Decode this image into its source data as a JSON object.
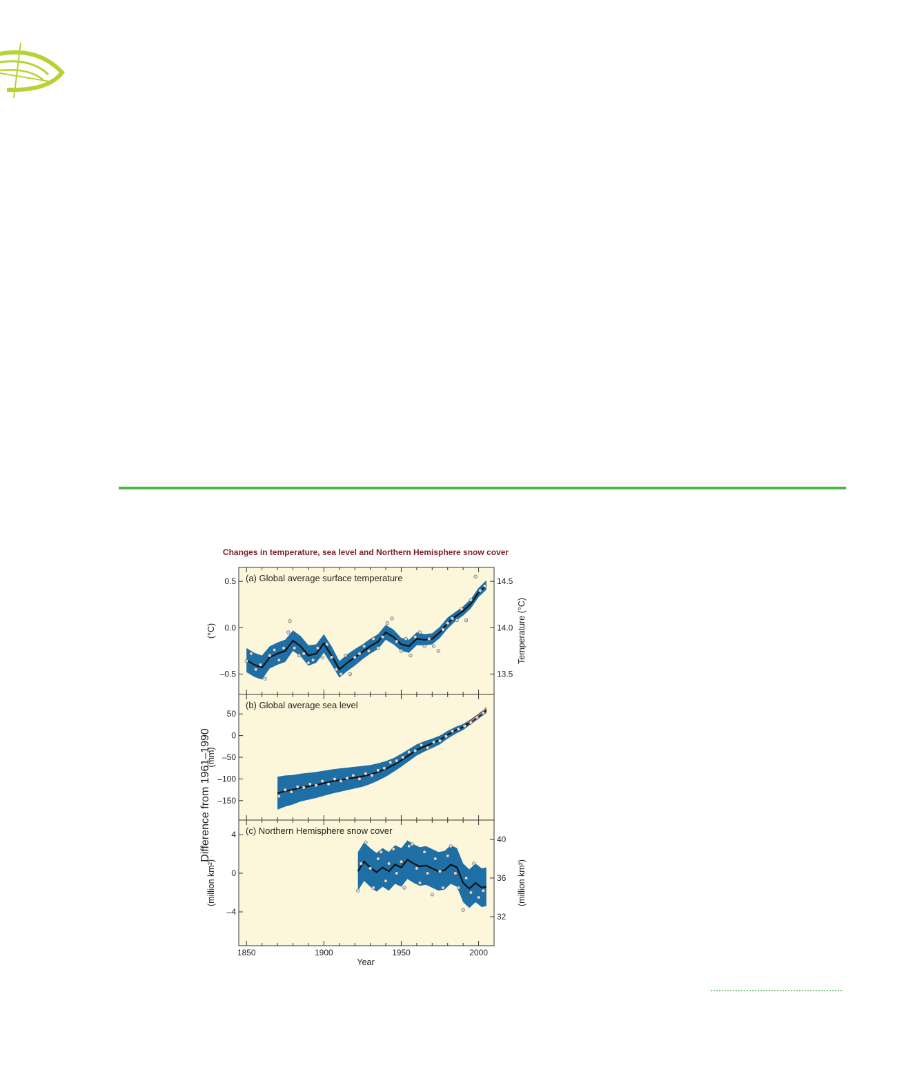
{
  "logo_icon": "compass-swoosh-icon",
  "colors": {
    "rule": "#4cb648",
    "band": "#1d6fa6",
    "panel_bg": "#fcf7da",
    "title": "#7a1f2a",
    "obs_line": "#111111",
    "satellite": "#e8703a"
  },
  "chart_data": {
    "type": "line",
    "title": "Changes in temperature, sea level and Northern Hemisphere snow cover",
    "shared_ylabel": "Difference from 1961–1990",
    "xlabel": "Year",
    "xlim": [
      1845,
      2010
    ],
    "xticks": [
      "1850",
      "1900",
      "1950",
      "2000"
    ],
    "panels": [
      {
        "id": "a",
        "label": "(a) Global average surface temperature",
        "ylabel": "(°C)",
        "ylim": [
          -0.72,
          0.65
        ],
        "yticks": [
          "0.5",
          "0.0",
          "–0.5"
        ],
        "ytick_values": [
          0.5,
          0.0,
          -0.5
        ],
        "right_ylabel": "Temperature (°C)",
        "right_yticks": [
          "14.5",
          "14.0",
          "13.5"
        ],
        "right_ytick_values": [
          0.5,
          0.0,
          -0.5
        ],
        "smooth": {
          "x": [
            1850,
            1855,
            1860,
            1865,
            1870,
            1875,
            1880,
            1885,
            1890,
            1895,
            1900,
            1905,
            1910,
            1915,
            1920,
            1925,
            1930,
            1935,
            1940,
            1945,
            1950,
            1955,
            1960,
            1965,
            1970,
            1975,
            1980,
            1985,
            1990,
            1995,
            2000,
            2005
          ],
          "y": [
            -0.35,
            -0.4,
            -0.43,
            -0.32,
            -0.28,
            -0.25,
            -0.14,
            -0.2,
            -0.3,
            -0.28,
            -0.17,
            -0.3,
            -0.45,
            -0.38,
            -0.32,
            -0.26,
            -0.2,
            -0.15,
            -0.05,
            -0.1,
            -0.18,
            -0.2,
            -0.12,
            -0.13,
            -0.12,
            -0.05,
            0.05,
            0.12,
            0.18,
            0.26,
            0.38,
            0.46
          ]
        },
        "uncertainty": [
          0.13,
          0.13,
          0.13,
          0.12,
          0.12,
          0.12,
          0.11,
          0.11,
          0.11,
          0.1,
          0.1,
          0.1,
          0.09,
          0.09,
          0.09,
          0.08,
          0.08,
          0.08,
          0.08,
          0.08,
          0.07,
          0.07,
          0.07,
          0.06,
          0.06,
          0.06,
          0.06,
          0.05,
          0.05,
          0.05,
          0.05,
          0.05
        ],
        "annual": {
          "x": [
            1850,
            1853,
            1856,
            1859,
            1862,
            1865,
            1868,
            1871,
            1874,
            1877,
            1878,
            1881,
            1884,
            1887,
            1890,
            1893,
            1896,
            1899,
            1902,
            1905,
            1908,
            1911,
            1914,
            1917,
            1920,
            1923,
            1926,
            1929,
            1932,
            1935,
            1938,
            1941,
            1944,
            1947,
            1950,
            1953,
            1956,
            1959,
            1962,
            1965,
            1968,
            1971,
            1974,
            1977,
            1980,
            1983,
            1986,
            1989,
            1992,
            1995,
            1998,
            2001,
            2004
          ],
          "y": [
            -0.36,
            -0.28,
            -0.45,
            -0.4,
            -0.55,
            -0.3,
            -0.24,
            -0.35,
            -0.22,
            -0.05,
            0.07,
            -0.22,
            -0.3,
            -0.28,
            -0.38,
            -0.35,
            -0.22,
            -0.32,
            -0.18,
            -0.32,
            -0.45,
            -0.5,
            -0.3,
            -0.5,
            -0.32,
            -0.28,
            -0.2,
            -0.25,
            -0.12,
            -0.22,
            -0.1,
            0.05,
            0.1,
            -0.15,
            -0.25,
            -0.12,
            -0.3,
            -0.1,
            -0.05,
            -0.2,
            -0.12,
            -0.2,
            -0.25,
            -0.02,
            0.05,
            0.1,
            0.08,
            0.2,
            0.08,
            0.3,
            0.55,
            0.4,
            0.45
          ]
        }
      },
      {
        "id": "b",
        "label": "(b) Global average sea level",
        "ylabel": "(mm)",
        "ylim": [
          -195,
          95
        ],
        "yticks": [
          "50",
          "0",
          "–50",
          "–100",
          "–150"
        ],
        "ytick_values": [
          50,
          0,
          -50,
          -100,
          -150
        ],
        "smooth": {
          "x": [
            1870,
            1875,
            1880,
            1885,
            1890,
            1895,
            1900,
            1905,
            1910,
            1915,
            1920,
            1925,
            1930,
            1935,
            1940,
            1945,
            1950,
            1955,
            1960,
            1965,
            1970,
            1975,
            1980,
            1985,
            1990,
            1995,
            2000,
            2005
          ],
          "y": [
            -133,
            -128,
            -125,
            -120,
            -117,
            -114,
            -110,
            -106,
            -103,
            -100,
            -97,
            -94,
            -90,
            -84,
            -77,
            -68,
            -57,
            -45,
            -33,
            -25,
            -18,
            -10,
            2,
            12,
            20,
            32,
            45,
            58
          ]
        },
        "uncertainty": [
          38,
          36,
          34,
          32,
          31,
          30,
          29,
          28,
          27,
          26,
          25,
          24,
          22,
          20,
          18,
          16,
          15,
          14,
          13,
          12,
          11,
          10,
          9,
          8,
          7,
          6,
          6,
          6
        ],
        "satellite": {
          "x": [
            1993,
            1996,
            1999,
            2002,
            2005
          ],
          "y": [
            30,
            36,
            45,
            52,
            65
          ]
        },
        "annual": {
          "x": [
            1871,
            1875,
            1879,
            1883,
            1887,
            1891,
            1895,
            1899,
            1903,
            1907,
            1911,
            1915,
            1919,
            1923,
            1927,
            1931,
            1935,
            1939,
            1943,
            1947,
            1951,
            1955,
            1959,
            1963,
            1967,
            1971,
            1975,
            1979,
            1983,
            1987,
            1991,
            1995,
            1999,
            2003
          ],
          "y": [
            -140,
            -125,
            -130,
            -118,
            -120,
            -112,
            -115,
            -105,
            -112,
            -100,
            -105,
            -98,
            -92,
            -100,
            -88,
            -92,
            -80,
            -75,
            -62,
            -58,
            -50,
            -38,
            -35,
            -22,
            -28,
            -15,
            -12,
            -2,
            10,
            15,
            22,
            30,
            42,
            52
          ]
        }
      },
      {
        "id": "c",
        "label": "(c) Northern Hemisphere snow cover",
        "ylabel": "(million km²)",
        "ylim": [
          -7.5,
          5.5
        ],
        "yticks": [
          "4",
          "0",
          "–4"
        ],
        "ytick_values": [
          4,
          0,
          -4
        ],
        "right_ylabel": "(million km²)",
        "right_yticks": [
          "40",
          "36",
          "32"
        ],
        "right_ytick_values": [
          3.5,
          -0.5,
          -4.5
        ],
        "smooth": {
          "x": [
            1922,
            1926,
            1930,
            1934,
            1938,
            1942,
            1946,
            1950,
            1954,
            1958,
            1962,
            1966,
            1970,
            1974,
            1978,
            1982,
            1986,
            1990,
            1994,
            1998,
            2002,
            2005
          ],
          "y": [
            0.2,
            1.2,
            0.6,
            0.1,
            0.6,
            0.2,
            0.9,
            0.6,
            1.4,
            1.0,
            0.7,
            0.8,
            0.5,
            0.2,
            0.3,
            0.9,
            0.6,
            -1.0,
            -1.6,
            -1.0,
            -1.5,
            -1.4
          ]
        },
        "uncertainty": [
          2.0,
          2.0,
          2.0,
          2.0,
          2.0,
          2.0,
          2.0,
          2.0,
          2.0,
          2.0,
          2.0,
          2.0,
          2.0,
          2.0,
          2.0,
          2.0,
          2.0,
          2.0,
          2.0,
          2.0,
          2.0,
          2.0
        ],
        "annual": {
          "x": [
            1922,
            1924,
            1927,
            1930,
            1932,
            1935,
            1937,
            1940,
            1942,
            1945,
            1947,
            1950,
            1952,
            1955,
            1957,
            1960,
            1962,
            1965,
            1967,
            1970,
            1972,
            1975,
            1977,
            1980,
            1982,
            1985,
            1987,
            1990,
            1992,
            1995,
            1997,
            2000,
            2003
          ],
          "y": [
            -1.8,
            1.0,
            3.2,
            0.5,
            -1.5,
            1.5,
            2.2,
            -0.8,
            1.0,
            2.5,
            0.0,
            1.2,
            -1.5,
            2.8,
            3.0,
            0.5,
            -1.0,
            2.2,
            0.0,
            -2.2,
            1.5,
            0.2,
            -1.5,
            1.8,
            2.8,
            0.0,
            -1.5,
            -3.8,
            -0.5,
            -2.0,
            1.0,
            -2.5,
            -1.8
          ]
        }
      }
    ]
  }
}
